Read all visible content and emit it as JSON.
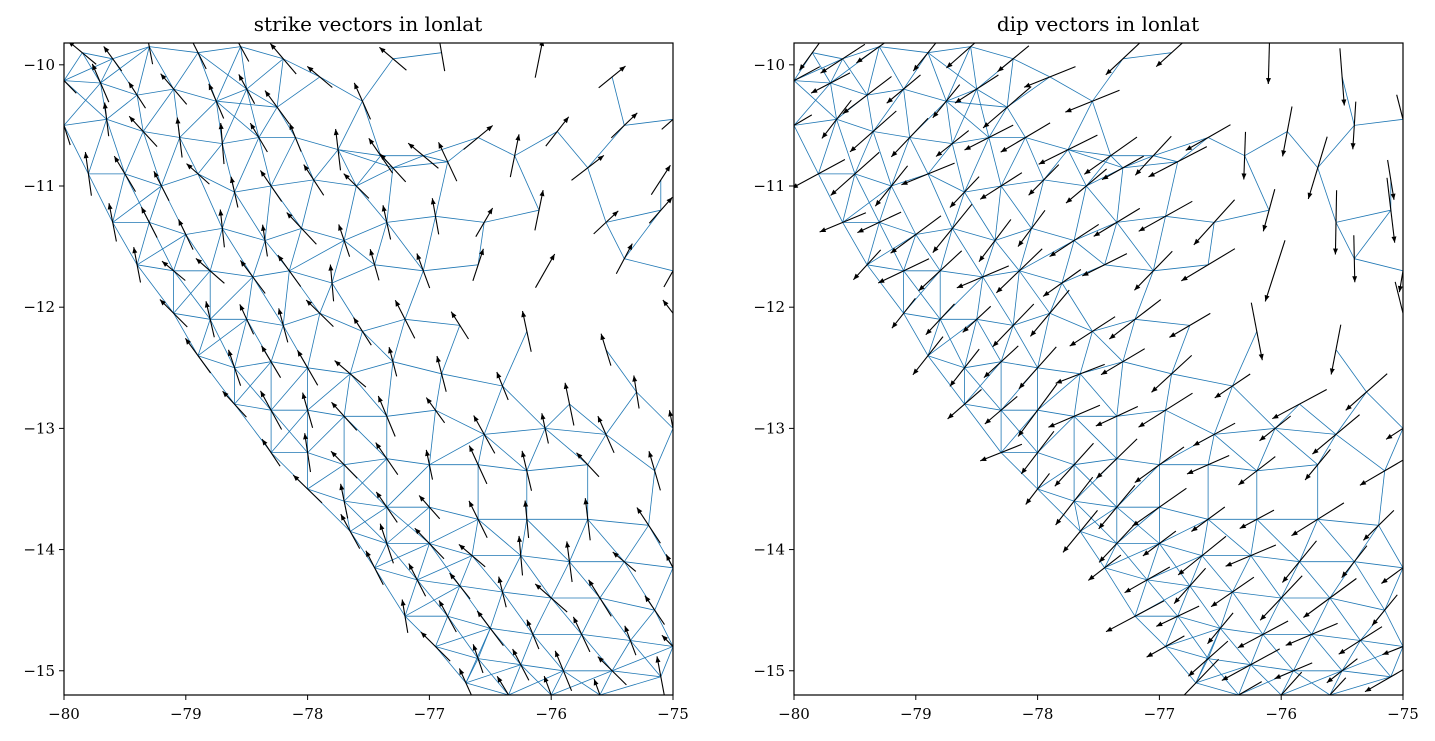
{
  "chart_data": [
    {
      "type": "quiver",
      "title": "strike vectors in lonlat",
      "xlabel": "",
      "ylabel": "",
      "xlim": [
        -80,
        -75
      ],
      "ylim": [
        -15.2,
        -9.82
      ],
      "xticks": [
        -80,
        -79,
        -78,
        -77,
        -76,
        -75
      ],
      "xtick_labels": [
        "−80",
        "−79",
        "−78",
        "−77",
        "−76",
        "−75"
      ],
      "yticks": [
        -15,
        -14,
        -13,
        -12,
        -11,
        -10
      ],
      "ytick_labels": [
        "−15",
        "−14",
        "−13",
        "−12",
        "−11",
        "−10"
      ],
      "grid": false,
      "mesh_color": "#1f77b4",
      "arrow_color": "#000000",
      "mesh_nodes": [
        [
          -79.85,
          -9.9
        ],
        [
          -79.6,
          -9.95
        ],
        [
          -79.3,
          -9.85
        ],
        [
          -78.9,
          -9.9
        ],
        [
          -78.55,
          -9.85
        ],
        [
          -78.2,
          -9.95
        ],
        [
          -80.0,
          -10.13
        ],
        [
          -79.7,
          -10.15
        ],
        [
          -79.4,
          -10.25
        ],
        [
          -79.1,
          -10.2
        ],
        [
          -78.75,
          -10.3
        ],
        [
          -78.5,
          -10.2
        ],
        [
          -78.25,
          -10.35
        ],
        [
          -77.9,
          -10.1
        ],
        [
          -77.55,
          -10.3
        ],
        [
          -77.3,
          -9.95
        ],
        [
          -76.9,
          -9.9
        ],
        [
          -76.1,
          -9.95
        ],
        [
          -75.5,
          -10.1
        ],
        [
          -75.0,
          -10.45
        ],
        [
          -80.0,
          -10.5
        ],
        [
          -79.65,
          -10.45
        ],
        [
          -79.35,
          -10.55
        ],
        [
          -79.05,
          -10.6
        ],
        [
          -78.7,
          -10.65
        ],
        [
          -78.4,
          -10.6
        ],
        [
          -78.1,
          -10.6
        ],
        [
          -77.75,
          -10.7
        ],
        [
          -77.4,
          -10.75
        ],
        [
          -77.05,
          -10.75
        ],
        [
          -76.6,
          -10.6
        ],
        [
          -75.95,
          -10.55
        ],
        [
          -75.4,
          -10.5
        ],
        [
          -79.8,
          -10.9
        ],
        [
          -79.5,
          -10.9
        ],
        [
          -79.2,
          -11.0
        ],
        [
          -78.9,
          -10.9
        ],
        [
          -78.6,
          -11.05
        ],
        [
          -78.3,
          -11.0
        ],
        [
          -77.95,
          -10.95
        ],
        [
          -77.6,
          -11.0
        ],
        [
          -77.3,
          -10.85
        ],
        [
          -76.85,
          -10.8
        ],
        [
          -76.3,
          -10.75
        ],
        [
          -75.7,
          -10.85
        ],
        [
          -75.1,
          -10.95
        ],
        [
          -79.6,
          -11.3
        ],
        [
          -79.3,
          -11.3
        ],
        [
          -79.0,
          -11.4
        ],
        [
          -78.7,
          -11.35
        ],
        [
          -78.35,
          -11.45
        ],
        [
          -78.05,
          -11.35
        ],
        [
          -77.7,
          -11.45
        ],
        [
          -77.35,
          -11.3
        ],
        [
          -76.95,
          -11.25
        ],
        [
          -76.55,
          -11.3
        ],
        [
          -76.1,
          -11.2
        ],
        [
          -75.55,
          -11.3
        ],
        [
          -75.1,
          -11.2
        ],
        [
          -79.4,
          -11.65
        ],
        [
          -79.1,
          -11.7
        ],
        [
          -78.8,
          -11.7
        ],
        [
          -78.45,
          -11.75
        ],
        [
          -78.15,
          -11.7
        ],
        [
          -77.8,
          -11.8
        ],
        [
          -77.45,
          -11.65
        ],
        [
          -77.05,
          -11.7
        ],
        [
          -76.6,
          -11.65
        ],
        [
          -76.05,
          -11.7
        ],
        [
          -75.4,
          -11.6
        ],
        [
          -75.0,
          -11.7
        ],
        [
          -79.1,
          -12.05
        ],
        [
          -78.8,
          -12.1
        ],
        [
          -78.5,
          -12.1
        ],
        [
          -78.2,
          -12.15
        ],
        [
          -77.9,
          -12.05
        ],
        [
          -77.55,
          -12.2
        ],
        [
          -77.2,
          -12.1
        ],
        [
          -76.75,
          -12.15
        ],
        [
          -76.2,
          -12.2
        ],
        [
          -75.55,
          -12.35
        ],
        [
          -75.0,
          -12.05
        ],
        [
          -78.9,
          -12.4
        ],
        [
          -78.6,
          -12.5
        ],
        [
          -78.3,
          -12.45
        ],
        [
          -78.0,
          -12.5
        ],
        [
          -77.65,
          -12.55
        ],
        [
          -77.3,
          -12.45
        ],
        [
          -76.9,
          -12.55
        ],
        [
          -76.4,
          -12.65
        ],
        [
          -75.85,
          -12.8
        ],
        [
          -75.3,
          -12.7
        ],
        [
          -78.6,
          -12.8
        ],
        [
          -78.3,
          -12.85
        ],
        [
          -78.0,
          -12.85
        ],
        [
          -77.7,
          -12.9
        ],
        [
          -77.35,
          -12.9
        ],
        [
          -76.95,
          -12.85
        ],
        [
          -76.55,
          -13.05
        ],
        [
          -76.05,
          -13.0
        ],
        [
          -75.55,
          -13.05
        ],
        [
          -75.0,
          -13.0
        ],
        [
          -78.3,
          -13.2
        ],
        [
          -78.0,
          -13.2
        ],
        [
          -77.7,
          -13.3
        ],
        [
          -77.35,
          -13.25
        ],
        [
          -77.0,
          -13.3
        ],
        [
          -76.6,
          -13.3
        ],
        [
          -76.2,
          -13.35
        ],
        [
          -75.7,
          -13.3
        ],
        [
          -75.15,
          -13.35
        ],
        [
          -78.0,
          -13.5
        ],
        [
          -77.7,
          -13.6
        ],
        [
          -77.35,
          -13.65
        ],
        [
          -77.0,
          -13.65
        ],
        [
          -76.6,
          -13.75
        ],
        [
          -76.2,
          -13.75
        ],
        [
          -75.7,
          -13.75
        ],
        [
          -75.2,
          -13.8
        ],
        [
          -77.65,
          -13.85
        ],
        [
          -77.35,
          -13.95
        ],
        [
          -77.0,
          -13.95
        ],
        [
          -76.65,
          -14.05
        ],
        [
          -76.25,
          -14.05
        ],
        [
          -75.85,
          -14.1
        ],
        [
          -75.4,
          -14.1
        ],
        [
          -75.0,
          -14.15
        ],
        [
          -77.45,
          -14.15
        ],
        [
          -77.1,
          -14.25
        ],
        [
          -76.75,
          -14.3
        ],
        [
          -76.4,
          -14.35
        ],
        [
          -76.0,
          -14.4
        ],
        [
          -75.6,
          -14.4
        ],
        [
          -75.15,
          -14.5
        ],
        [
          -77.2,
          -14.55
        ],
        [
          -76.85,
          -14.55
        ],
        [
          -76.5,
          -14.65
        ],
        [
          -76.15,
          -14.7
        ],
        [
          -75.75,
          -14.7
        ],
        [
          -75.35,
          -14.75
        ],
        [
          -75.0,
          -14.8
        ],
        [
          -76.95,
          -14.8
        ],
        [
          -76.6,
          -14.9
        ],
        [
          -76.25,
          -14.95
        ],
        [
          -75.9,
          -15.0
        ],
        [
          -75.5,
          -15.0
        ],
        [
          -75.1,
          -15.05
        ],
        [
          -76.7,
          -15.1
        ],
        [
          -76.35,
          -15.2
        ],
        [
          -76.0,
          -15.2
        ],
        [
          -75.6,
          -15.2
        ]
      ]
    },
    {
      "type": "quiver",
      "title": "dip vectors in lonlat",
      "xlabel": "",
      "ylabel": "",
      "xlim": [
        -80,
        -75
      ],
      "ylim": [
        -15.2,
        -9.82
      ],
      "xticks": [
        -80,
        -79,
        -78,
        -77,
        -76,
        -75
      ],
      "xtick_labels": [
        "−80",
        "−79",
        "−78",
        "−77",
        "−76",
        "−75"
      ],
      "yticks": [
        -15,
        -14,
        -13,
        -12,
        -11,
        -10
      ],
      "ytick_labels": [
        "−15",
        "−14",
        "−13",
        "−12",
        "−11",
        "−10"
      ],
      "grid": false,
      "mesh_color": "#1f77b4",
      "arrow_color": "#000000"
    }
  ]
}
